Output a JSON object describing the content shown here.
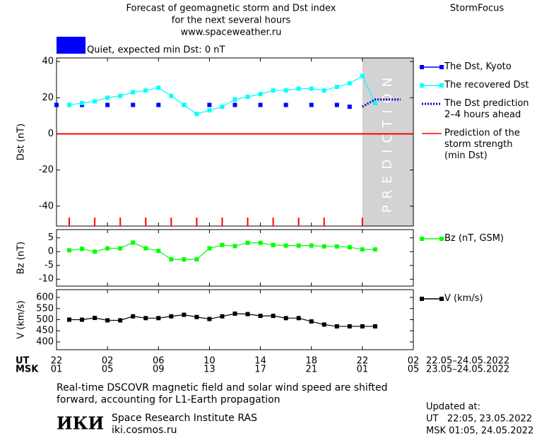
{
  "header": {
    "title_lines": [
      "Forecast of geomagnetic storm and Dst index",
      "for the next several hours",
      "www.spaceweather.ru"
    ],
    "site": "StormFocus"
  },
  "status": {
    "text": "Quiet, expected min Dst: 0 nT",
    "color": "#0000ff"
  },
  "chart_data": [
    {
      "type": "line",
      "y_label": "Dst (nT)",
      "xlim": [
        0,
        28
      ],
      "ylim": [
        -51,
        42
      ],
      "yticks": [
        -40,
        -20,
        0,
        20,
        40
      ],
      "prediction": {
        "from": 24,
        "label": "PREDICTION",
        "color": "#d3d3d3"
      },
      "series": [
        {
          "name": "The Dst, Kyoto",
          "color": "#0000ff",
          "marker": "square",
          "line": false,
          "x": [
            0,
            2,
            4,
            6,
            8,
            10,
            12,
            14,
            16,
            18,
            20,
            22,
            23
          ],
          "values": [
            16,
            16,
            16,
            16,
            16,
            16,
            16,
            16,
            16,
            16,
            16,
            16,
            15
          ]
        },
        {
          "name": "The recovered Dst",
          "color": "#00ffff",
          "marker": "square",
          "line": true,
          "x": [
            1,
            2,
            3,
            4,
            5,
            6,
            7,
            8,
            9,
            10,
            11,
            12,
            13,
            14,
            15,
            16,
            17,
            18,
            19,
            20,
            21,
            22,
            23,
            24,
            25
          ],
          "values": [
            16,
            17,
            18,
            20,
            21,
            23,
            24,
            25.5,
            21,
            16,
            11,
            13,
            15,
            19,
            20.5,
            22,
            24,
            24,
            25,
            25,
            24,
            26,
            28,
            32,
            17
          ]
        },
        {
          "name": "The Dst prediction\n2–4 hours ahead",
          "color": "#0000cc",
          "marker": "none",
          "line": true,
          "dash": true,
          "x": [
            24,
            25,
            26,
            27
          ],
          "values": [
            15,
            19,
            19,
            19
          ]
        }
      ],
      "reference_lines": [
        {
          "name": "Prediction of the\nstorm strength\n(min Dst)",
          "value": 0,
          "color": "#ff0000"
        }
      ],
      "event_markers": {
        "color": "#ff0000",
        "x": [
          1,
          3,
          5,
          7,
          9,
          11,
          13,
          15,
          17,
          19,
          21,
          24
        ]
      }
    },
    {
      "type": "line",
      "y_label": "Bz (nT)",
      "xlim": [
        0,
        28
      ],
      "ylim": [
        -12.5,
        8
      ],
      "yticks": [
        -10,
        -5,
        0,
        5
      ],
      "series": [
        {
          "name": "Bz (nT, GSM)",
          "color": "#00ff00",
          "marker": "square",
          "line": true,
          "x": [
            1,
            2,
            3,
            4,
            5,
            6,
            7,
            8,
            9,
            10,
            11,
            12,
            13,
            14,
            15,
            16,
            17,
            18,
            19,
            20,
            21,
            22,
            23,
            24,
            25
          ],
          "values": [
            0.5,
            1,
            0,
            1.2,
            1.2,
            3.3,
            1.2,
            0.3,
            -2.8,
            -2.8,
            -2.8,
            1.2,
            2.4,
            2,
            3.2,
            3.2,
            2.4,
            2.2,
            2.2,
            2.2,
            1.9,
            1.9,
            1.6,
            0.8,
            0.8
          ]
        }
      ]
    },
    {
      "type": "line",
      "y_label": "V (km/s)",
      "xlim": [
        0,
        28
      ],
      "ylim": [
        365,
        635
      ],
      "yticks": [
        400,
        450,
        500,
        550,
        600
      ],
      "series": [
        {
          "name": "V (km/s)",
          "color": "#000000",
          "marker": "square",
          "line": true,
          "x": [
            1,
            2,
            3,
            4,
            5,
            6,
            7,
            8,
            9,
            10,
            11,
            12,
            13,
            14,
            15,
            16,
            17,
            18,
            19,
            20,
            21,
            22,
            23,
            24,
            25
          ],
          "values": [
            500,
            500,
            508,
            497,
            497,
            515,
            507,
            507,
            515,
            522,
            512,
            503,
            515,
            527,
            525,
            517,
            517,
            507,
            507,
            492,
            478,
            470,
            470,
            470,
            470
          ]
        }
      ],
      "xticks": [
        {
          "value": 0,
          "label": "22"
        },
        {
          "value": 4,
          "label": "02"
        },
        {
          "value": 8,
          "label": "06"
        },
        {
          "value": 12,
          "label": "10"
        },
        {
          "value": 16,
          "label": "14"
        },
        {
          "value": 20,
          "label": "18"
        },
        {
          "value": 24,
          "label": "22"
        },
        {
          "value": 28,
          "label": "02"
        }
      ],
      "msk_labels": [
        "01",
        "05",
        "09",
        "13",
        "17",
        "21",
        "01",
        "05"
      ],
      "x_rows": {
        "ut": "UT",
        "msk": "MSK",
        "ut_range": "22.05–24.05.2022",
        "msk_range": "23.05–24.05.2022"
      }
    }
  ],
  "footer": {
    "note_lines": [
      "Real-time DSCOVR magnetic field and solar wind speed are shifted",
      "forward, accounting for L1-Earth propagation"
    ],
    "logo": "ИКИ",
    "institute": "Space Research Institute RAS",
    "url": "iki.cosmos.ru",
    "updated_lines": [
      "Updated at:",
      "UT   22:05, 23.05.2022",
      "MSK 01:05, 24.05.2022"
    ]
  }
}
